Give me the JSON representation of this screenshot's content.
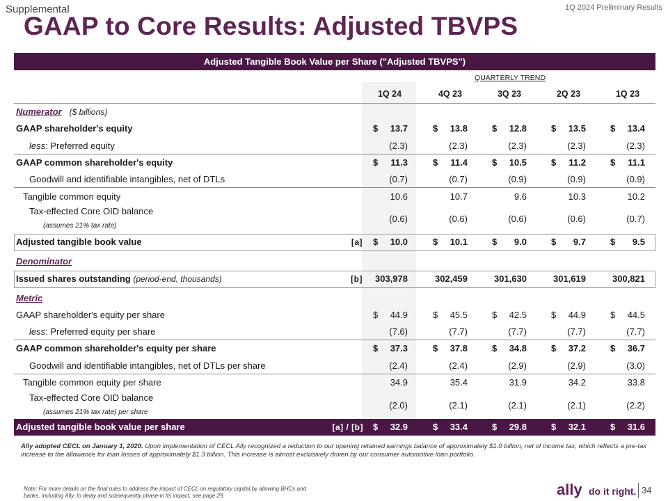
{
  "header": {
    "section_label": "Supplemental",
    "period_label": "1Q 2024 Preliminary Results",
    "title": "GAAP to Core Results: Adjusted TBVPS"
  },
  "table": {
    "banner": "Adjusted Tangible Book Value per Share (\"Adjusted TBVPS\")",
    "trend_label": "QUARTERLY TREND",
    "columns": [
      "1Q 24",
      "4Q 23",
      "3Q 23",
      "2Q 23",
      "1Q 23"
    ],
    "numerator": {
      "label": "Numerator",
      "unit": "($ billions)"
    },
    "denominator": {
      "label": "Denominator"
    },
    "metric": {
      "label": "Metric"
    },
    "rows": {
      "gaap_equity": {
        "label": "GAAP shareholder's equity",
        "values": [
          "13.7",
          "13.8",
          "12.8",
          "13.5",
          "13.4"
        ]
      },
      "preferred": {
        "prefix": "less",
        "label": ":  Preferred equity",
        "values": [
          "(2.3)",
          "(2.3)",
          "(2.3)",
          "(2.3)",
          "(2.3)"
        ]
      },
      "common_equity": {
        "label": "GAAP common shareholder's equity",
        "values": [
          "11.3",
          "11.4",
          "10.5",
          "11.2",
          "11.1"
        ]
      },
      "goodwill": {
        "label": "Goodwill and identifiable intangibles, net of DTLs",
        "values": [
          "(0.7)",
          "(0.7)",
          "(0.9)",
          "(0.9)",
          "(0.9)"
        ]
      },
      "tangible": {
        "label": "Tangible common equity",
        "values": [
          "10.6",
          "10.7",
          "9.6",
          "10.3",
          "10.2"
        ]
      },
      "oid": {
        "label": "Tax-effected Core OID balance",
        "note": "(assumes 21% tax rate)",
        "values": [
          "(0.6)",
          "(0.6)",
          "(0.6)",
          "(0.6)",
          "(0.7)"
        ]
      },
      "adj_tbv": {
        "label": "Adjusted tangible book value",
        "ref": "[a]",
        "values": [
          "10.0",
          "10.1",
          "9.0",
          "9.7",
          "9.5"
        ]
      },
      "shares": {
        "label": "Issued shares outstanding",
        "note": "(period-end, thousands)",
        "ref": "[b]",
        "values": [
          "303,978",
          "302,459",
          "301,630",
          "301,619",
          "300,821"
        ]
      },
      "ps_equity": {
        "label": "GAAP shareholder's equity per share",
        "values": [
          "44.9",
          "45.5",
          "42.5",
          "44.9",
          "44.5"
        ]
      },
      "ps_preferred": {
        "prefix": "less",
        "label": ":  Preferred equity per share",
        "values": [
          "(7.6)",
          "(7.7)",
          "(7.7)",
          "(7.7)",
          "(7.7)"
        ]
      },
      "ps_common": {
        "label": "GAAP common shareholder's equity per share",
        "values": [
          "37.3",
          "37.8",
          "34.8",
          "37.2",
          "36.7"
        ]
      },
      "ps_goodwill": {
        "label": "Goodwill and identifiable intangibles, net of DTLs per share",
        "values": [
          "(2.4)",
          "(2.4)",
          "(2.9)",
          "(2.9)",
          "(3.0)"
        ]
      },
      "ps_tangible": {
        "label": "Tangible common equity per share",
        "values": [
          "34.9",
          "35.4",
          "31.9",
          "34.2",
          "33.8"
        ]
      },
      "ps_oid": {
        "label": "Tax-effected Core OID balance",
        "note": "(assumes 21% tax rate) per share",
        "values": [
          "(2.0)",
          "(2.1)",
          "(2.1)",
          "(2.1)",
          "(2.2)"
        ]
      },
      "ps_adj": {
        "label": "Adjusted tangible book value per share",
        "ref": "[a] / [b]",
        "values": [
          "32.9",
          "33.4",
          "29.8",
          "32.1",
          "31.6"
        ]
      }
    },
    "currency_symbol": "$"
  },
  "footnote": {
    "lead": "Ally adopted CECL on January 1, 2020.",
    "text": " Upon implementation of CECL Ally recognized a reduction to our opening retained earnings balance of approximately $1.0 billion, net of income tax, which reflects a pre-tax increase to the allowance for loan losses of approximately $1.3 billion. This increase is almost exclusively driven by our consumer automotive loan portfolio."
  },
  "note": "Note: For more details on the final rules to address the impact of CECL on regulatory capital by allowing BHCs and banks, including Ally, to delay and subsequently phase-in its impact, see page 29.",
  "footer": {
    "logo": "ally",
    "tagline": "do it right.",
    "page_number": "34"
  }
}
